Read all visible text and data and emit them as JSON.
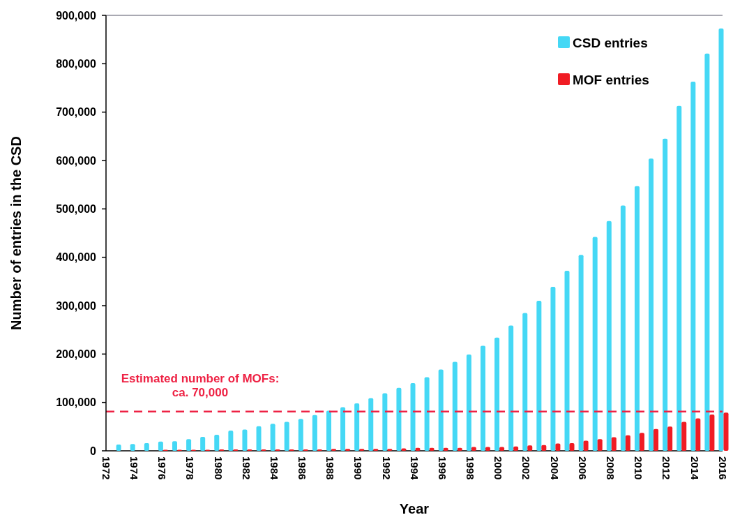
{
  "chart_data": {
    "type": "bar",
    "xlabel": "Year",
    "ylabel": "Number of entries in the CSD",
    "categories": [
      "1972",
      null,
      "1974",
      null,
      "1976",
      null,
      "1978",
      null,
      "1980",
      null,
      "1982",
      null,
      "1984",
      null,
      "1986",
      null,
      "1988",
      null,
      "1990",
      null,
      "1992",
      null,
      "1994",
      null,
      "1996",
      null,
      "1998",
      null,
      "2000",
      null,
      "2002",
      null,
      "2004",
      null,
      "2006",
      null,
      "2008",
      null,
      "2010",
      null,
      "2012",
      null,
      "2014",
      null,
      "2016"
    ],
    "series": [
      {
        "name": "CSD entries",
        "color": "#45d8f5",
        "values": [
          null,
          13000,
          14000,
          16000,
          19000,
          20000,
          24000,
          29000,
          33000,
          42000,
          44000,
          51000,
          56000,
          60000,
          66000,
          74000,
          83000,
          90000,
          98000,
          109000,
          119000,
          130000,
          140000,
          152000,
          168000,
          184000,
          199000,
          217000,
          234000,
          259000,
          285000,
          310000,
          339000,
          372000,
          405000,
          442000,
          475000,
          507000,
          547000,
          604000,
          645000,
          713000,
          763000,
          821000,
          873000
        ]
      },
      {
        "name": "MOF entries",
        "color": "#f01c24",
        "values": [
          null,
          null,
          null,
          null,
          2000,
          2000,
          2000,
          2000,
          3000,
          3000,
          3000,
          3000,
          3000,
          3000,
          3000,
          3000,
          4000,
          4000,
          4000,
          4000,
          4000,
          5000,
          6000,
          6000,
          6000,
          6000,
          8000,
          8000,
          8000,
          9000,
          11000,
          12000,
          15000,
          16000,
          21000,
          24000,
          28000,
          32000,
          37000,
          45000,
          50000,
          60000,
          67000,
          75000,
          79000
        ]
      }
    ],
    "ylim": [
      0,
      900000
    ],
    "yticks": [
      {
        "value": 0,
        "label": "0"
      },
      {
        "value": 100000,
        "label": "100,000"
      },
      {
        "value": 200000,
        "label": "200,000"
      },
      {
        "value": 300000,
        "label": "300,000"
      },
      {
        "value": 400000,
        "label": "400,000"
      },
      {
        "value": 500000,
        "label": "500,000"
      },
      {
        "value": 600000,
        "label": "600,000"
      },
      {
        "value": 700000,
        "label": "700,000"
      },
      {
        "value": 800000,
        "label": "800,000"
      },
      {
        "value": 900000,
        "label": "900,000"
      }
    ],
    "ref_lines": [
      {
        "axis": "y",
        "value": 81000,
        "label": "Estimated number of MOFs:\nca. 70,000",
        "color": "#ee2244",
        "line_style": "dashed"
      }
    ],
    "legend": "top right",
    "grid": false
  }
}
